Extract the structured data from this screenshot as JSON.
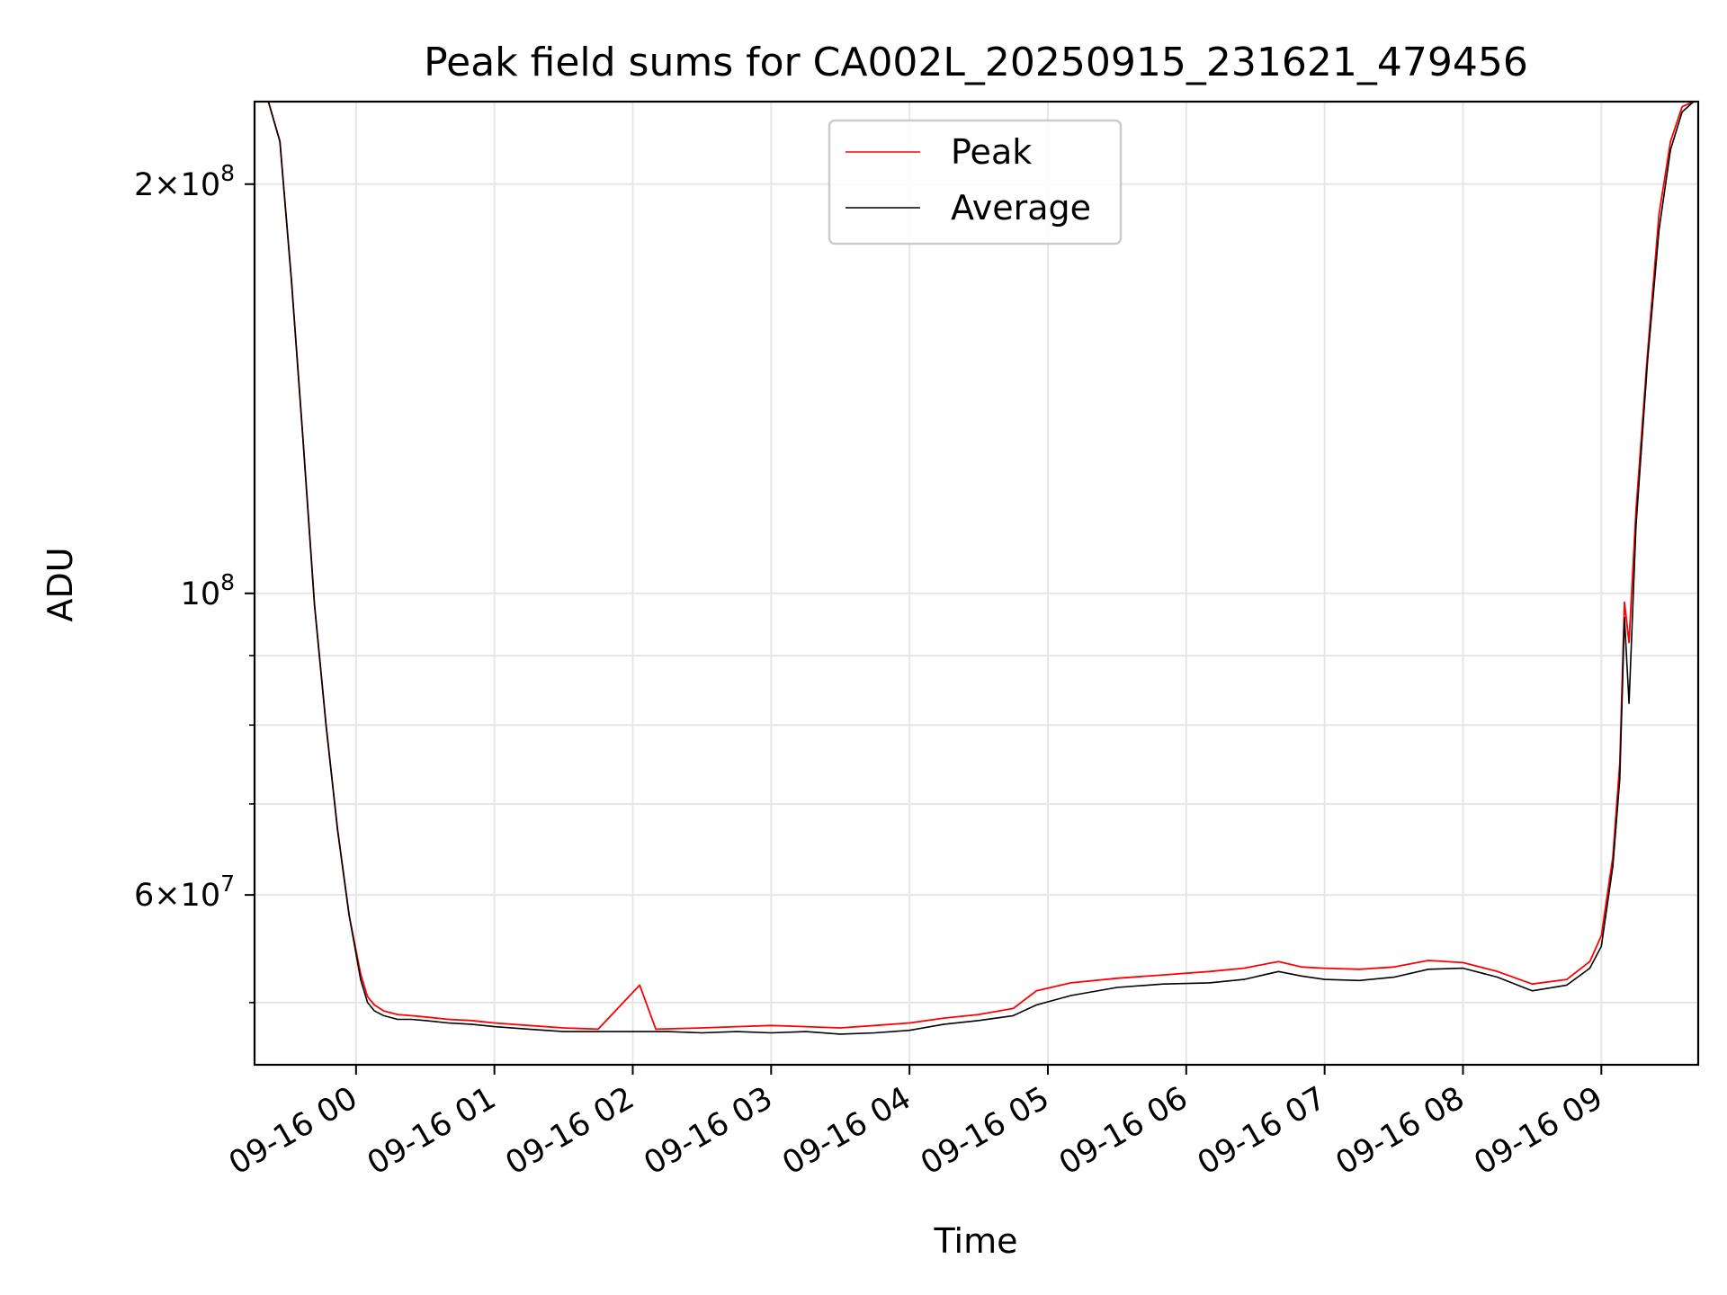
{
  "chart_data": {
    "type": "line",
    "title": "Peak field sums for CA002L_20250915_231621_479456",
    "xlabel": "Time",
    "ylabel": "ADU",
    "x_type": "datetime",
    "xlim": [
      "2025-09-15 23:16",
      "2025-09-16 09:42"
    ],
    "y_scale": "log",
    "ylim": [
      45000000,
      230000000
    ],
    "grid": true,
    "legend_position": "top-center",
    "x_ticks": [
      {
        "value": "2025-09-16 00:00",
        "label": "09-16 00"
      },
      {
        "value": "2025-09-16 01:00",
        "label": "09-16 01"
      },
      {
        "value": "2025-09-16 02:00",
        "label": "09-16 02"
      },
      {
        "value": "2025-09-16 03:00",
        "label": "09-16 03"
      },
      {
        "value": "2025-09-16 04:00",
        "label": "09-16 04"
      },
      {
        "value": "2025-09-16 05:00",
        "label": "09-16 05"
      },
      {
        "value": "2025-09-16 06:00",
        "label": "09-16 06"
      },
      {
        "value": "2025-09-16 07:00",
        "label": "09-16 07"
      },
      {
        "value": "2025-09-16 08:00",
        "label": "09-16 08"
      },
      {
        "value": "2025-09-16 09:00",
        "label": "09-16 09"
      }
    ],
    "y_ticks": [
      {
        "value": 60000000,
        "mantissa": "6",
        "exponent": "7"
      },
      {
        "value": 100000000,
        "mantissa": "",
        "exponent": "8"
      },
      {
        "value": 200000000,
        "mantissa": "2",
        "exponent": "8"
      }
    ],
    "y_minor_ticks": [
      50000000,
      70000000,
      80000000,
      90000000
    ],
    "series": [
      {
        "name": "Peak",
        "color": "#ff0000",
        "x": [
          "2025-09-15 23:16",
          "2025-09-15 23:22",
          "2025-09-15 23:27",
          "2025-09-15 23:32",
          "2025-09-15 23:37",
          "2025-09-15 23:42",
          "2025-09-15 23:47",
          "2025-09-15 23:52",
          "2025-09-15 23:57",
          "2025-09-16 00:02",
          "2025-09-16 00:05",
          "2025-09-16 00:08",
          "2025-09-16 00:12",
          "2025-09-16 00:18",
          "2025-09-16 00:24",
          "2025-09-16 00:30",
          "2025-09-16 00:40",
          "2025-09-16 00:50",
          "2025-09-16 01:00",
          "2025-09-16 01:15",
          "2025-09-16 01:30",
          "2025-09-16 01:45",
          "2025-09-16 02:03",
          "2025-09-16 02:10",
          "2025-09-16 02:30",
          "2025-09-16 02:45",
          "2025-09-16 03:00",
          "2025-09-16 03:15",
          "2025-09-16 03:30",
          "2025-09-16 03:45",
          "2025-09-16 04:00",
          "2025-09-16 04:15",
          "2025-09-16 04:30",
          "2025-09-16 04:45",
          "2025-09-16 04:55",
          "2025-09-16 05:10",
          "2025-09-16 05:30",
          "2025-09-16 05:50",
          "2025-09-16 06:10",
          "2025-09-16 06:25",
          "2025-09-16 06:40",
          "2025-09-16 06:50",
          "2025-09-16 07:00",
          "2025-09-16 07:15",
          "2025-09-16 07:30",
          "2025-09-16 07:45",
          "2025-09-16 08:00",
          "2025-09-16 08:15",
          "2025-09-16 08:30",
          "2025-09-16 08:45",
          "2025-09-16 08:55",
          "2025-09-16 09:00",
          "2025-09-16 09:05",
          "2025-09-16 09:08",
          "2025-09-16 09:10",
          "2025-09-16 09:12",
          "2025-09-16 09:15",
          "2025-09-16 09:20",
          "2025-09-16 09:25",
          "2025-09-16 09:30",
          "2025-09-16 09:35",
          "2025-09-16 09:40",
          "2025-09-16 09:42"
        ],
        "values": [
          230000000,
          230000000,
          215000000,
          170000000,
          130000000,
          98000000,
          80000000,
          67000000,
          58000000,
          52500000,
          50500000,
          49800000,
          49300000,
          49000000,
          48900000,
          48800000,
          48600000,
          48500000,
          48300000,
          48100000,
          47900000,
          47800000,
          51500000,
          47800000,
          47900000,
          48000000,
          48100000,
          48000000,
          47900000,
          48100000,
          48300000,
          48700000,
          49000000,
          49500000,
          51000000,
          51700000,
          52100000,
          52400000,
          52700000,
          53000000,
          53600000,
          53100000,
          53000000,
          52900000,
          53100000,
          53700000,
          53500000,
          52700000,
          51600000,
          52000000,
          53600000,
          56000000,
          64000000,
          75000000,
          98500000,
          92000000,
          115000000,
          150000000,
          190000000,
          215000000,
          228000000,
          230000000,
          230000000
        ]
      },
      {
        "name": "Average",
        "color": "#000000",
        "x": [
          "2025-09-15 23:16",
          "2025-09-15 23:22",
          "2025-09-15 23:27",
          "2025-09-15 23:32",
          "2025-09-15 23:37",
          "2025-09-15 23:42",
          "2025-09-15 23:47",
          "2025-09-15 23:52",
          "2025-09-15 23:57",
          "2025-09-16 00:02",
          "2025-09-16 00:05",
          "2025-09-16 00:08",
          "2025-09-16 00:12",
          "2025-09-16 00:18",
          "2025-09-16 00:24",
          "2025-09-16 00:30",
          "2025-09-16 00:40",
          "2025-09-16 00:50",
          "2025-09-16 01:00",
          "2025-09-16 01:15",
          "2025-09-16 01:30",
          "2025-09-16 01:45",
          "2025-09-16 02:00",
          "2025-09-16 02:15",
          "2025-09-16 02:30",
          "2025-09-16 02:45",
          "2025-09-16 03:00",
          "2025-09-16 03:15",
          "2025-09-16 03:30",
          "2025-09-16 03:45",
          "2025-09-16 04:00",
          "2025-09-16 04:15",
          "2025-09-16 04:30",
          "2025-09-16 04:45",
          "2025-09-16 04:55",
          "2025-09-16 05:10",
          "2025-09-16 05:30",
          "2025-09-16 05:50",
          "2025-09-16 06:10",
          "2025-09-16 06:25",
          "2025-09-16 06:40",
          "2025-09-16 06:50",
          "2025-09-16 07:00",
          "2025-09-16 07:15",
          "2025-09-16 07:30",
          "2025-09-16 07:45",
          "2025-09-16 08:00",
          "2025-09-16 08:15",
          "2025-09-16 08:30",
          "2025-09-16 08:45",
          "2025-09-16 08:55",
          "2025-09-16 09:00",
          "2025-09-16 09:05",
          "2025-09-16 09:08",
          "2025-09-16 09:10",
          "2025-09-16 09:12",
          "2025-09-16 09:15",
          "2025-09-16 09:20",
          "2025-09-16 09:25",
          "2025-09-16 09:30",
          "2025-09-16 09:35",
          "2025-09-16 09:40",
          "2025-09-16 09:42"
        ],
        "values": [
          230000000,
          230000000,
          215000000,
          170000000,
          130000000,
          98000000,
          80000000,
          67000000,
          58000000,
          52000000,
          50000000,
          49300000,
          48900000,
          48600000,
          48600000,
          48500000,
          48300000,
          48200000,
          48000000,
          47800000,
          47600000,
          47600000,
          47600000,
          47600000,
          47500000,
          47600000,
          47500000,
          47600000,
          47400000,
          47500000,
          47700000,
          48200000,
          48500000,
          48900000,
          49800000,
          50600000,
          51300000,
          51600000,
          51700000,
          52000000,
          52700000,
          52300000,
          52000000,
          51900000,
          52200000,
          52900000,
          53000000,
          52200000,
          51000000,
          51500000,
          53000000,
          55000000,
          63000000,
          73000000,
          96000000,
          83000000,
          112000000,
          148000000,
          185000000,
          212000000,
          226000000,
          230000000,
          230000000
        ]
      }
    ]
  }
}
